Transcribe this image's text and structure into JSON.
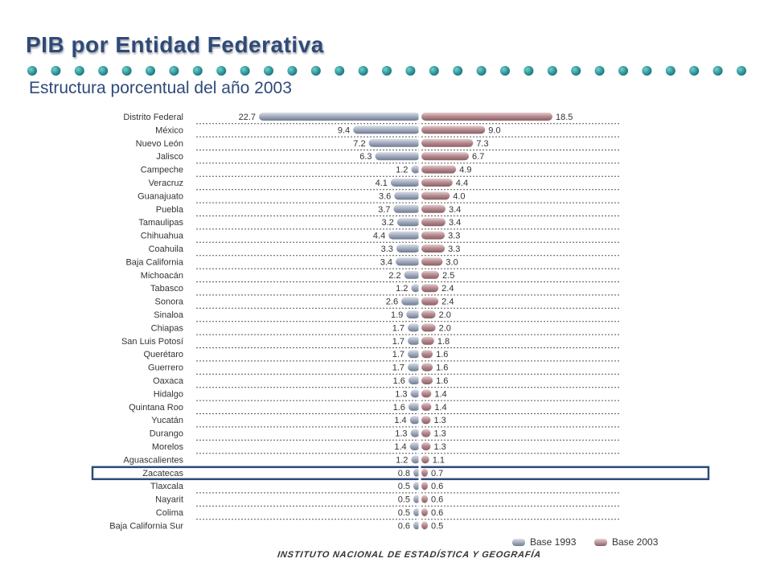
{
  "header": {
    "title": "PIB por Entidad Federativa",
    "subtitle": "Estructura porcentual del año 2003"
  },
  "footer": {
    "institution": "INSTITUTO NACIONAL DE ESTADÍSTICA Y GEOGRAFÍA"
  },
  "colors": {
    "title": "#2e4a7a",
    "dots": "#1f8a8e",
    "base1993": "#9aa4b6",
    "base2003": "#b48a8f",
    "highlight_box": "#2e4a7a",
    "separator": "#555555"
  },
  "highlight": {
    "category": "Zacatecas"
  },
  "chart_data": {
    "type": "bar",
    "orientation": "horizontal-diverging",
    "title": "Estructura porcentual del año 2003",
    "categories": [
      "Distrito Federal",
      "México",
      "Nuevo León",
      "Jalisco",
      "Campeche",
      "Veracruz",
      "Guanajuato",
      "Puebla",
      "Tamaulipas",
      "Chihuahua",
      "Coahuila",
      "Baja California",
      "Michoacán",
      "Tabasco",
      "Sonora",
      "Sinaloa",
      "Chiapas",
      "San Luis Potosí",
      "Querétaro",
      "Guerrero",
      "Oaxaca",
      "Hidalgo",
      "Quintana Roo",
      "Yucatán",
      "Durango",
      "Morelos",
      "Aguascalientes",
      "Zacatecas",
      "Tlaxcala",
      "Nayarit",
      "Colima",
      "Baja California Sur"
    ],
    "series": [
      {
        "name": "Base 1993",
        "side": "left",
        "values": [
          22.7,
          9.4,
          7.2,
          6.3,
          1.2,
          4.1,
          3.6,
          3.7,
          3.2,
          4.4,
          3.3,
          3.4,
          2.2,
          1.2,
          2.6,
          1.9,
          1.7,
          1.7,
          1.7,
          1.7,
          1.6,
          1.3,
          1.6,
          1.4,
          1.3,
          1.4,
          1.2,
          0.8,
          0.5,
          0.5,
          0.5,
          0.6
        ]
      },
      {
        "name": "Base 2003",
        "side": "right",
        "values": [
          18.5,
          9.0,
          7.3,
          6.7,
          4.9,
          4.4,
          4.0,
          3.4,
          3.4,
          3.3,
          3.3,
          3.0,
          2.5,
          2.4,
          2.4,
          2.0,
          2.0,
          1.8,
          1.6,
          1.6,
          1.6,
          1.4,
          1.4,
          1.3,
          1.3,
          1.3,
          1.1,
          0.7,
          0.6,
          0.6,
          0.6,
          0.5
        ]
      }
    ],
    "legend_position": "bottom-right",
    "grid": false
  }
}
